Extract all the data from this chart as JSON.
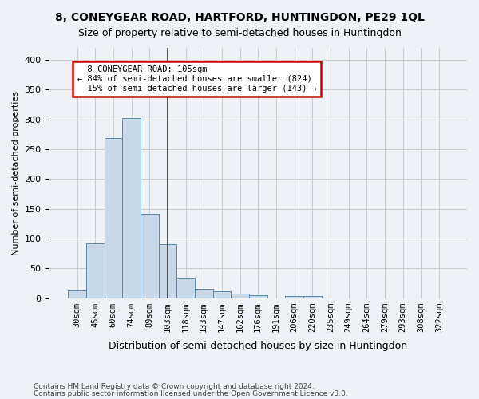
{
  "title": "8, CONEYGEAR ROAD, HARTFORD, HUNTINGDON, PE29 1QL",
  "subtitle": "Size of property relative to semi-detached houses in Huntingdon",
  "xlabel": "Distribution of semi-detached houses by size in Huntingdon",
  "ylabel": "Number of semi-detached properties",
  "footnote1": "Contains HM Land Registry data © Crown copyright and database right 2024.",
  "footnote2": "Contains public sector information licensed under the Open Government Licence v3.0.",
  "categories": [
    "30sqm",
    "45sqm",
    "60sqm",
    "74sqm",
    "89sqm",
    "103sqm",
    "118sqm",
    "133sqm",
    "147sqm",
    "162sqm",
    "176sqm",
    "191sqm",
    "206sqm",
    "220sqm",
    "235sqm",
    "249sqm",
    "264sqm",
    "279sqm",
    "293sqm",
    "308sqm",
    "322sqm"
  ],
  "bar_values": [
    13,
    92,
    268,
    302,
    141,
    90,
    34,
    15,
    11,
    8,
    5,
    0,
    3,
    4,
    0,
    0,
    0,
    0,
    0,
    0,
    0
  ],
  "bar_color": "#c8d8e8",
  "bar_edge_color": "#5a8ab0",
  "highlight_index": 5,
  "highlight_line_color": "#333333",
  "property_label": "8 CONEYGEAR ROAD: 105sqm",
  "smaller_pct": "84%",
  "smaller_count": 824,
  "larger_pct": "15%",
  "larger_count": 143,
  "annotation_box_color": "#ffffff",
  "annotation_box_edge": "#cc0000",
  "ylim": [
    0,
    420
  ],
  "yticks": [
    0,
    50,
    100,
    150,
    200,
    250,
    300,
    350,
    400
  ],
  "grid_color": "#cccccc",
  "bg_color": "#eef2f7"
}
